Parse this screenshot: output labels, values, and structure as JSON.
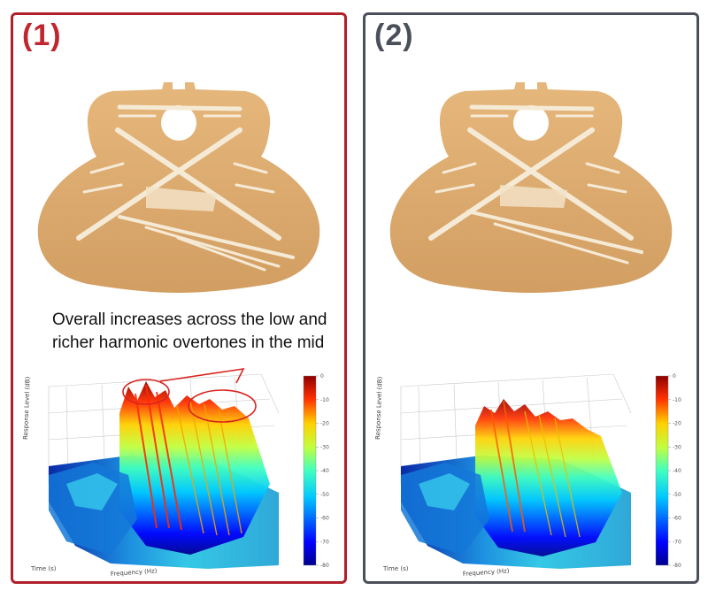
{
  "panels": [
    {
      "label": "(1)",
      "caption_line1": "Overall increases across the low and",
      "caption_line2": "richer harmonic overtones in the mid",
      "border_color": "#b0202a",
      "spectrum": {
        "ylabel": "Response Level (dB)",
        "xlabel": "Frequency (Hz)",
        "zlabel": "Time (s)",
        "colorbar_ticks": [
          "0",
          "-10",
          "-20",
          "-30",
          "-40",
          "-50",
          "-60",
          "-70",
          "-80"
        ]
      }
    },
    {
      "label": "(2)",
      "border_color": "#4a4f5a",
      "spectrum": {
        "ylabel": "Response Level (dB)",
        "xlabel": "Frequency (Hz)",
        "zlabel": "Time (s)",
        "colorbar_ticks": [
          "0",
          "-10",
          "-20",
          "-30",
          "-40",
          "-50",
          "-60",
          "-70",
          "-80"
        ]
      }
    }
  ],
  "colors": {
    "wood": "#dcaa6e",
    "brace": "#f4ead8",
    "highlight_ellipse": "#d9231f"
  }
}
